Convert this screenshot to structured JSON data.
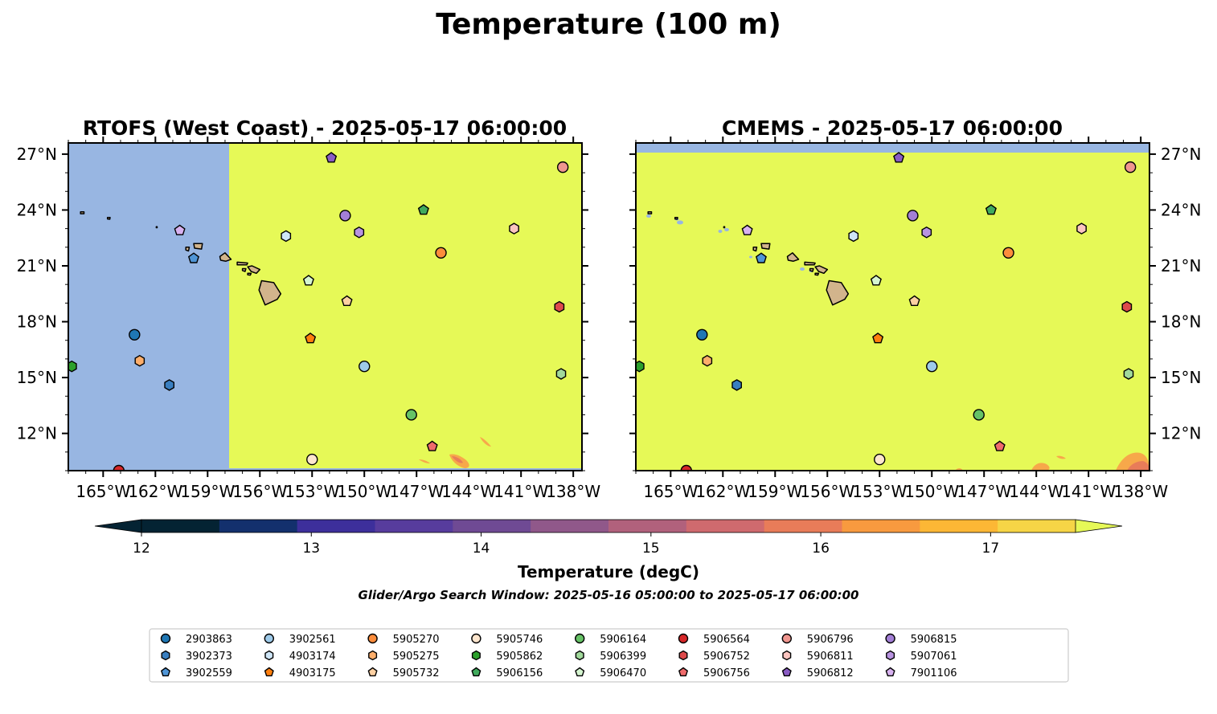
{
  "figure": {
    "title": "Temperature (100 m)",
    "colorbar_label": "Temperature (degC)",
    "search_window": "Glider/Argo Search Window: 2025-05-16 05:00:00 to 2025-05-17 06:00:00"
  },
  "colors": {
    "land": "#d2b48c",
    "nodata": "#98b6e2",
    "warm_max": "#e6f957"
  },
  "colorbar": {
    "min": 12,
    "max": 17.5,
    "step": 0.5,
    "ticks": [
      "12",
      "13",
      "14",
      "15",
      "16",
      "17"
    ],
    "colors": [
      "#042333",
      "#13306d",
      "#3d2f9b",
      "#573c9d",
      "#6f4a94",
      "#90588a",
      "#b1617c",
      "#cf6a6e",
      "#e87c59",
      "#f89a3f",
      "#fcb735",
      "#f6d546"
    ],
    "extend": "both"
  },
  "chart_data": [
    {
      "type": "map",
      "title": "RTOFS (West Coast) - 2025-05-17 06:00:00",
      "xlim": [
        -167,
        -137.5
      ],
      "ylim": [
        10,
        27.6
      ],
      "x_ticks": [
        "165°W",
        "162°W",
        "159°W",
        "156°W",
        "153°W",
        "150°W",
        "147°W",
        "144°W",
        "141°W",
        "138°W"
      ],
      "y_ticks": [
        "27°N",
        "24°N",
        "21°N",
        "18°N",
        "15°N",
        "12°N"
      ],
      "y_tick_side": "left",
      "field": "Temperature at 100 m; >17.5 degC over most of domain; no data west of 157.7°W"
    },
    {
      "type": "map",
      "title": "CMEMS - 2025-05-17 06:00:00",
      "xlim": [
        -167,
        -137.5
      ],
      "ylim": [
        10,
        27.6
      ],
      "x_ticks": [
        "165°W",
        "162°W",
        "159°W",
        "156°W",
        "153°W",
        "150°W",
        "147°W",
        "144°W",
        "141°W",
        "138°W"
      ],
      "y_ticks": [
        "27°N",
        "24°N",
        "21°N",
        "18°N",
        "15°N",
        "12°N"
      ],
      "y_tick_side": "right",
      "field": "Temperature at 100 m; >17.5 degC over most of domain; no data north of 27.1°N"
    }
  ],
  "floats": [
    {
      "id": "2903863",
      "marker": "circle",
      "color": "#1f77b4",
      "lon": -163.2,
      "lat": 17.3
    },
    {
      "id": "3902373",
      "marker": "hexagon",
      "color": "#3a7fc0",
      "lon": -161.2,
      "lat": 14.6
    },
    {
      "id": "3902559",
      "marker": "pentagon",
      "color": "#4f95d6",
      "lon": -159.8,
      "lat": 21.4
    },
    {
      "id": "3902561",
      "marker": "circle",
      "color": "#9ecae9",
      "lon": -150.0,
      "lat": 15.6
    },
    {
      "id": "4903174",
      "marker": "hexagon",
      "color": "#cfe6f7",
      "lon": -154.5,
      "lat": 22.6
    },
    {
      "id": "4903175",
      "marker": "pentagon",
      "color": "#ff7f0e",
      "lon": -153.1,
      "lat": 17.1
    },
    {
      "id": "5905270",
      "marker": "circle",
      "color": "#fd8d3c",
      "lon": -145.6,
      "lat": 21.7
    },
    {
      "id": "5905275",
      "marker": "hexagon",
      "color": "#fdae6b",
      "lon": -162.9,
      "lat": 15.9
    },
    {
      "id": "5905732",
      "marker": "pentagon",
      "color": "#fdd0a2",
      "lon": -151.0,
      "lat": 19.1
    },
    {
      "id": "5905746",
      "marker": "circle",
      "color": "#fee6ce",
      "lon": -153.0,
      "lat": 10.6
    },
    {
      "id": "5905862",
      "marker": "hexagon",
      "color": "#2ca02c",
      "lon": -166.8,
      "lat": 15.6
    },
    {
      "id": "5906156",
      "marker": "pentagon",
      "color": "#41ab5d",
      "lon": -146.6,
      "lat": 24.0
    },
    {
      "id": "5906164",
      "marker": "circle",
      "color": "#66c266",
      "lon": -147.3,
      "lat": 13.0
    },
    {
      "id": "5906399",
      "marker": "hexagon",
      "color": "#a1d99b",
      "lon": -138.7,
      "lat": 15.2
    },
    {
      "id": "5906470",
      "marker": "pentagon",
      "color": "#d5f5d0",
      "lon": -153.2,
      "lat": 20.2
    },
    {
      "id": "5906564",
      "marker": "circle",
      "color": "#d62728",
      "lon": -164.1,
      "lat": 10.0
    },
    {
      "id": "5906752",
      "marker": "hexagon",
      "color": "#de4a4b",
      "lon": -138.8,
      "lat": 18.8
    },
    {
      "id": "5906756",
      "marker": "pentagon",
      "color": "#ef6b6b",
      "lon": -146.1,
      "lat": 11.3
    },
    {
      "id": "5906796",
      "marker": "circle",
      "color": "#f0968f",
      "lon": -138.6,
      "lat": 26.3
    },
    {
      "id": "5906811",
      "marker": "hexagon",
      "color": "#fcc5c0",
      "lon": -141.4,
      "lat": 23.0
    },
    {
      "id": "5906812",
      "marker": "pentagon",
      "color": "#8a5cc4",
      "lon": -151.9,
      "lat": 26.8
    },
    {
      "id": "5906815",
      "marker": "circle",
      "color": "#a37fd6",
      "lon": -151.1,
      "lat": 23.7
    },
    {
      "id": "5907061",
      "marker": "hexagon",
      "color": "#b893e0",
      "lon": -150.3,
      "lat": 22.8
    },
    {
      "id": "7901106",
      "marker": "pentagon",
      "color": "#d8b2f0",
      "lon": -160.6,
      "lat": 22.9
    }
  ]
}
